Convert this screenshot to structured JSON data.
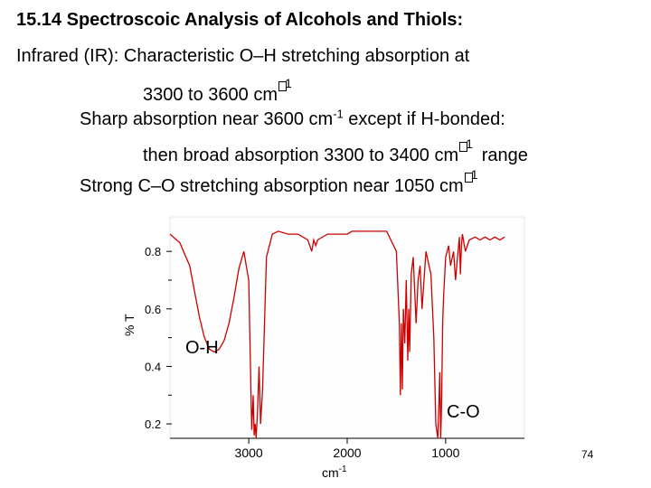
{
  "slide": {
    "title": "15.14 Spectroscoic Analysis of Alcohols and Thiols:",
    "line1": "Infrared (IR): Characteristic O–H stretching absorption at",
    "line2_prefix": "3300 to 3600 cm",
    "line2_sup": "1",
    "line3_prefix": "Sharp absorption near 3600 cm",
    "line3_sup": "-1",
    "line3_suffix": " except if H-bonded:",
    "line4_prefix": "then broad absorption 3300 to 3400 cm",
    "line4_sup": "1",
    "line4_suffix": " range",
    "line5_prefix": "Strong C–O stretching absorption near 1050 cm",
    "line5_sup": "1",
    "page_number": "74"
  },
  "chart_data": {
    "type": "line",
    "xlabel": "cm-1",
    "ylabel": "% T",
    "x_reversed": true,
    "xlim": [
      3800,
      200
    ],
    "ylim": [
      0.15,
      0.92
    ],
    "x_ticks": [
      3000,
      2000,
      1000
    ],
    "y_ticks": [
      0.8,
      0.6,
      0.4,
      0.2
    ],
    "line_color": "#cc0000",
    "annotations": [
      "O-H",
      "C-O"
    ],
    "series": [
      {
        "x": [
          3800,
          3700,
          3600,
          3550,
          3500,
          3450,
          3400,
          3350,
          3300,
          3250,
          3200,
          3150,
          3100,
          3050,
          3000,
          2985,
          2970,
          2955,
          2945,
          2935,
          2925,
          2910,
          2895,
          2880,
          2860,
          2820,
          2760,
          2700,
          2600,
          2500,
          2400,
          2360,
          2340,
          2320,
          2300,
          2200,
          2100,
          2000,
          1950,
          1900,
          1800,
          1700,
          1600,
          1500,
          1470,
          1460,
          1450,
          1440,
          1430,
          1415,
          1400,
          1385,
          1375,
          1365,
          1350,
          1330,
          1300,
          1280,
          1260,
          1240,
          1200,
          1150,
          1120,
          1110,
          1100,
          1080,
          1070,
          1060,
          1050,
          1045,
          1040,
          1030,
          1020,
          1000,
          970,
          950,
          920,
          900,
          880,
          860,
          850,
          840,
          830,
          800,
          760,
          700,
          650,
          600,
          550,
          500,
          450,
          400
        ],
        "y": [
          0.86,
          0.83,
          0.75,
          0.66,
          0.57,
          0.5,
          0.46,
          0.45,
          0.46,
          0.49,
          0.55,
          0.64,
          0.74,
          0.8,
          0.7,
          0.45,
          0.18,
          0.3,
          0.16,
          0.2,
          0.15,
          0.25,
          0.4,
          0.2,
          0.32,
          0.78,
          0.86,
          0.87,
          0.86,
          0.86,
          0.84,
          0.8,
          0.84,
          0.82,
          0.84,
          0.86,
          0.86,
          0.86,
          0.87,
          0.87,
          0.87,
          0.87,
          0.87,
          0.8,
          0.55,
          0.3,
          0.55,
          0.32,
          0.6,
          0.48,
          0.7,
          0.42,
          0.6,
          0.45,
          0.72,
          0.78,
          0.55,
          0.7,
          0.75,
          0.6,
          0.8,
          0.72,
          0.5,
          0.35,
          0.2,
          0.15,
          0.25,
          0.38,
          0.15,
          0.22,
          0.3,
          0.55,
          0.65,
          0.78,
          0.82,
          0.75,
          0.8,
          0.7,
          0.78,
          0.85,
          0.72,
          0.82,
          0.86,
          0.8,
          0.84,
          0.85,
          0.84,
          0.85,
          0.84,
          0.85,
          0.84,
          0.85
        ]
      }
    ]
  }
}
